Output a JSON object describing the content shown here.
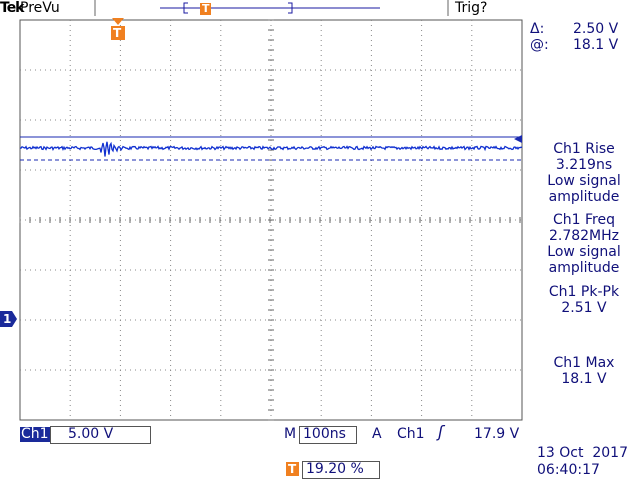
{
  "header": {
    "brand": "Tek",
    "mode": "PreVu",
    "trigger_status": "Trig?"
  },
  "markers": {
    "trigger": "T",
    "channel": "1"
  },
  "cursor": {
    "delta_label": "Δ:",
    "delta": "2.50 V",
    "at_label": "@:",
    "at": "18.1 V"
  },
  "measurements": [
    {
      "name": "Ch1 Rise",
      "value": "3.219ns",
      "note": "Low signal amplitude"
    },
    {
      "name": "Ch1 Freq",
      "value": "2.782MHz",
      "note": "Low signal amplitude"
    },
    {
      "name": "Ch1 Pk-Pk",
      "value": "2.51 V"
    },
    {
      "name": "Ch1 Max",
      "value": "18.1 V"
    }
  ],
  "footer": {
    "channel": "Ch1",
    "scale": "5.00 V",
    "timebase_label": "M",
    "timebase": "100ns",
    "trigger_label": "A",
    "trigger_source": "Ch1",
    "trigger_level": "17.9 V",
    "date": "13 Oct  2017",
    "time": "06:40:17",
    "trigger_position": "19.20 %"
  }
}
